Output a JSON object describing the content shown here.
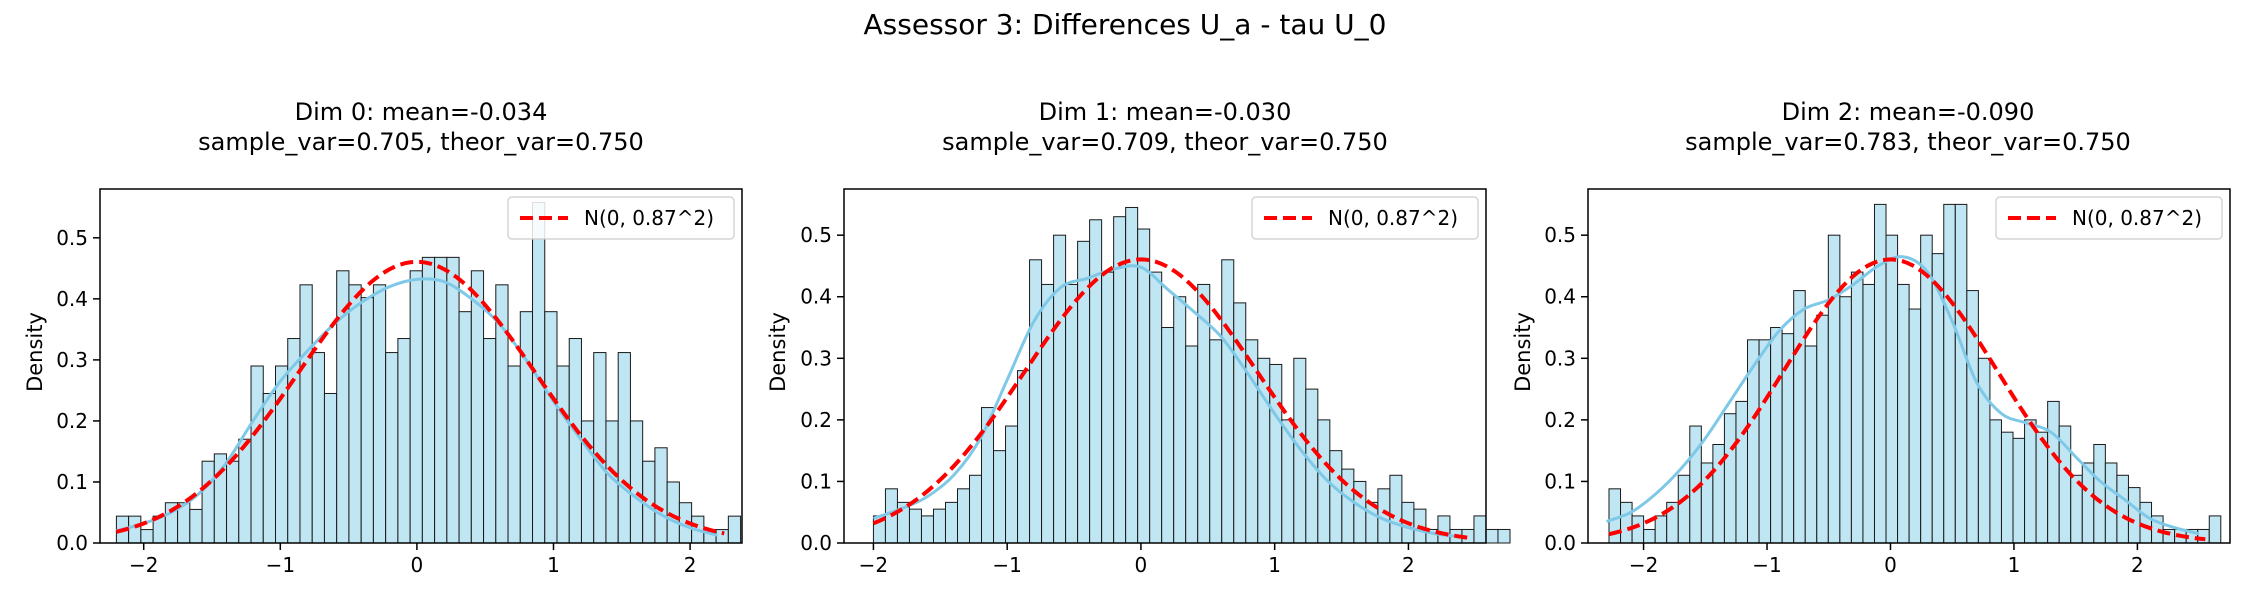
{
  "figure": {
    "title": "Assessor 3: Differences U_a - tau U_0"
  },
  "style": {
    "hist_fill": "#bfe6f2",
    "hist_edge": "#1a1a1a",
    "kde_color": "#7ec8e8",
    "normal_color": "#ff0000"
  },
  "chart_data": [
    {
      "type": "bar",
      "subtype": "histogram-with-kde-and-normal-curve",
      "title_line1": "Dim 0: mean=-0.034",
      "title_line2": "sample_var=0.705, theor_var=0.750",
      "ylabel": "Density",
      "xlim": [
        -2.32,
        2.38
      ],
      "ylim": [
        0,
        0.58
      ],
      "xticks": [
        -2,
        -1,
        0,
        1,
        2
      ],
      "yticks": [
        0.0,
        0.1,
        0.2,
        0.3,
        0.4,
        0.5
      ],
      "bin_start": -2.2,
      "bin_width": 0.0896,
      "values": [
        0.044,
        0.044,
        0.022,
        0.044,
        0.066,
        0.066,
        0.055,
        0.134,
        0.146,
        0.134,
        0.17,
        0.29,
        0.245,
        0.29,
        0.335,
        0.423,
        0.312,
        0.245,
        0.446,
        0.423,
        0.402,
        0.423,
        0.312,
        0.335,
        0.446,
        0.468,
        0.468,
        0.468,
        0.379,
        0.446,
        0.335,
        0.423,
        0.29,
        0.379,
        0.558,
        0.379,
        0.29,
        0.335,
        0.2,
        0.312,
        0.2,
        0.312,
        0.2,
        0.134,
        0.156,
        0.1,
        0.066,
        0.044,
        0.022,
        0.022,
        0.044
      ],
      "kde": {
        "x": [
          -2.2,
          -2.0,
          -1.8,
          -1.6,
          -1.4,
          -1.2,
          -1.0,
          -0.8,
          -0.6,
          -0.4,
          -0.2,
          0.0,
          0.2,
          0.4,
          0.6,
          0.8,
          1.0,
          1.2,
          1.4,
          1.6,
          1.8,
          2.0,
          2.2
        ],
        "y": [
          0.02,
          0.032,
          0.05,
          0.08,
          0.13,
          0.2,
          0.265,
          0.315,
          0.36,
          0.395,
          0.42,
          0.432,
          0.428,
          0.4,
          0.36,
          0.3,
          0.232,
          0.17,
          0.113,
          0.075,
          0.045,
          0.025,
          0.013
        ]
      },
      "normal": {
        "mean": 0,
        "sd": 0.866,
        "x_range": [
          -2.2,
          2.25
        ]
      },
      "legend": {
        "label": "N(0, 0.87^2)",
        "position": "upper right"
      }
    },
    {
      "type": "bar",
      "subtype": "histogram-with-kde-and-normal-curve",
      "title_line1": "Dim 1: mean=-0.030",
      "title_line2": "sample_var=0.709, theor_var=0.750",
      "ylabel": "Density",
      "xlim": [
        -2.22,
        2.58
      ],
      "ylim": [
        0,
        0.575
      ],
      "xticks": [
        -2,
        -1,
        0,
        1,
        2
      ],
      "yticks": [
        0.0,
        0.1,
        0.2,
        0.3,
        0.4,
        0.5
      ],
      "bin_start": -2.0,
      "bin_width": 0.0898,
      "values": [
        0.044,
        0.088,
        0.066,
        0.055,
        0.044,
        0.055,
        0.066,
        0.088,
        0.11,
        0.22,
        0.15,
        0.19,
        0.28,
        0.46,
        0.42,
        0.5,
        0.42,
        0.49,
        0.525,
        0.44,
        0.53,
        0.545,
        0.51,
        0.44,
        0.35,
        0.4,
        0.32,
        0.42,
        0.33,
        0.46,
        0.39,
        0.33,
        0.3,
        0.29,
        0.2,
        0.3,
        0.25,
        0.2,
        0.15,
        0.12,
        0.1,
        0.066,
        0.088,
        0.11,
        0.066,
        0.055,
        0.022,
        0.044,
        0.022,
        0.022,
        0.044,
        0.022,
        0.022
      ],
      "kde": {
        "x": [
          -2.0,
          -1.8,
          -1.6,
          -1.4,
          -1.2,
          -1.0,
          -0.8,
          -0.6,
          -0.4,
          -0.2,
          0.0,
          0.2,
          0.4,
          0.6,
          0.8,
          1.0,
          1.2,
          1.4,
          1.6,
          1.8,
          2.0,
          2.2,
          2.4
        ],
        "y": [
          0.04,
          0.055,
          0.075,
          0.11,
          0.17,
          0.265,
          0.36,
          0.415,
          0.43,
          0.445,
          0.448,
          0.412,
          0.375,
          0.335,
          0.275,
          0.21,
          0.15,
          0.1,
          0.065,
          0.04,
          0.025,
          0.015,
          0.01
        ]
      },
      "normal": {
        "mean": 0,
        "sd": 0.866,
        "x_range": [
          -2.0,
          2.45
        ]
      },
      "legend": {
        "label": "N(0, 0.87^2)",
        "position": "upper right"
      }
    },
    {
      "type": "bar",
      "subtype": "histogram-with-kde-and-normal-curve",
      "title_line1": "Dim 2: mean=-0.090",
      "title_line2": "sample_var=0.783, theor_var=0.750",
      "ylabel": "Density",
      "xlim": [
        -2.45,
        2.75
      ],
      "ylim": [
        0,
        0.575
      ],
      "xticks": [
        -2,
        -1,
        0,
        1,
        2
      ],
      "yticks": [
        0.0,
        0.1,
        0.2,
        0.3,
        0.4,
        0.5
      ],
      "bin_start": -2.28,
      "bin_width": 0.0935,
      "values": [
        0.088,
        0.066,
        0.044,
        0.022,
        0.044,
        0.066,
        0.11,
        0.19,
        0.13,
        0.16,
        0.21,
        0.23,
        0.33,
        0.33,
        0.35,
        0.34,
        0.41,
        0.32,
        0.37,
        0.5,
        0.4,
        0.44,
        0.42,
        0.55,
        0.5,
        0.42,
        0.38,
        0.5,
        0.47,
        0.55,
        0.55,
        0.41,
        0.3,
        0.2,
        0.18,
        0.17,
        0.2,
        0.18,
        0.23,
        0.19,
        0.11,
        0.13,
        0.16,
        0.13,
        0.11,
        0.09,
        0.066,
        0.044,
        0.022,
        0.022,
        0.022,
        0.022,
        0.044
      ],
      "kde": {
        "x": [
          -2.3,
          -2.1,
          -1.9,
          -1.7,
          -1.5,
          -1.3,
          -1.1,
          -0.9,
          -0.7,
          -0.5,
          -0.3,
          -0.1,
          0.1,
          0.3,
          0.5,
          0.7,
          0.9,
          1.1,
          1.3,
          1.5,
          1.7,
          1.9,
          2.1,
          2.3,
          2.5
        ],
        "y": [
          0.035,
          0.05,
          0.08,
          0.12,
          0.17,
          0.23,
          0.29,
          0.345,
          0.38,
          0.395,
          0.42,
          0.45,
          0.465,
          0.44,
          0.36,
          0.26,
          0.21,
          0.195,
          0.18,
          0.14,
          0.1,
          0.07,
          0.04,
          0.025,
          0.015
        ]
      },
      "normal": {
        "mean": 0,
        "sd": 0.866,
        "x_range": [
          -2.28,
          2.55
        ]
      },
      "legend": {
        "label": "N(0, 0.87^2)",
        "position": "upper right"
      }
    }
  ]
}
